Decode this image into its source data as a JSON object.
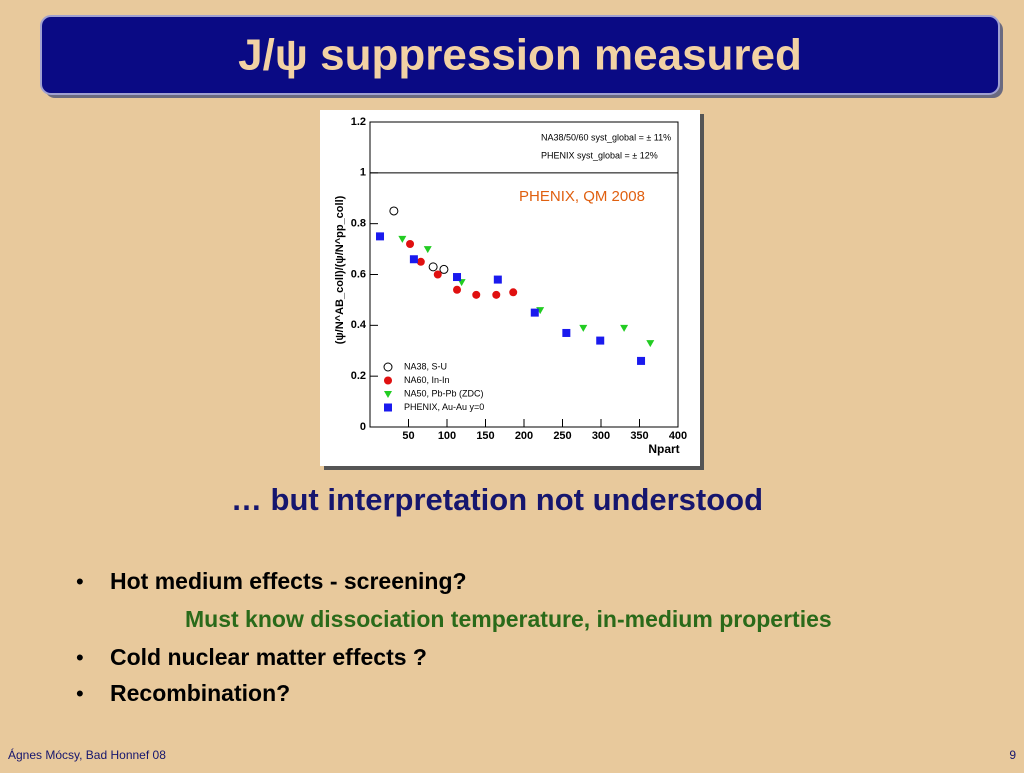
{
  "title": "J/ψ suppression measured",
  "chart_data": {
    "type": "scatter",
    "x_label": "Npart",
    "y_label": "(ψ/N^AB_coll)/(ψ/N^pp_coll)",
    "annotations": [
      "NA38/50/60 syst_global = ± 11%",
      "PHENIX syst_global = ± 12%",
      "PHENIX, QM 2008"
    ],
    "xlim": [
      0,
      400
    ],
    "xticks": [
      50,
      100,
      150,
      200,
      250,
      300,
      350,
      400
    ],
    "ylim": [
      0,
      1.2
    ],
    "yticks": [
      0,
      0.2,
      0.4,
      0.6,
      0.8,
      1,
      1.2
    ],
    "reference_line": 1,
    "legend": "lower-left",
    "series": [
      {
        "name": "NA38, S-U",
        "color": "#000000",
        "marker": "circle-open",
        "x": [
          31,
          82,
          96
        ],
        "values": [
          0.85,
          0.63,
          0.62
        ]
      },
      {
        "name": "NA60, In-In",
        "color": "#e01010",
        "marker": "circle",
        "x": [
          52,
          66,
          88,
          113,
          138,
          164,
          186
        ],
        "values": [
          0.72,
          0.65,
          0.6,
          0.54,
          0.52,
          0.52,
          0.53
        ]
      },
      {
        "name": "NA50, Pb-Pb (ZDC)",
        "color": "#22cc22",
        "marker": "triangle-down",
        "x": [
          42,
          75,
          119,
          221,
          277,
          330,
          364
        ],
        "values": [
          0.74,
          0.7,
          0.57,
          0.46,
          0.39,
          0.39,
          0.33
        ]
      },
      {
        "name": "PHENIX, Au-Au y=0",
        "color": "#1a1aee",
        "marker": "square",
        "x": [
          13,
          57,
          113,
          166,
          214,
          255,
          299,
          352
        ],
        "values": [
          0.75,
          0.66,
          0.59,
          0.58,
          0.45,
          0.37,
          0.34,
          0.26
        ]
      }
    ]
  },
  "subtitle": "… but interpretation not understood",
  "bullets": [
    {
      "text": "Hot medium effects - screening?",
      "note": "Must know dissociation temperature, in-medium properties"
    },
    {
      "text": "Cold nuclear matter effects ?"
    },
    {
      "text": "Recombination?"
    }
  ],
  "footer": {
    "author": "Ágnes Mócsy, Bad Honnef 08",
    "page": "9"
  }
}
